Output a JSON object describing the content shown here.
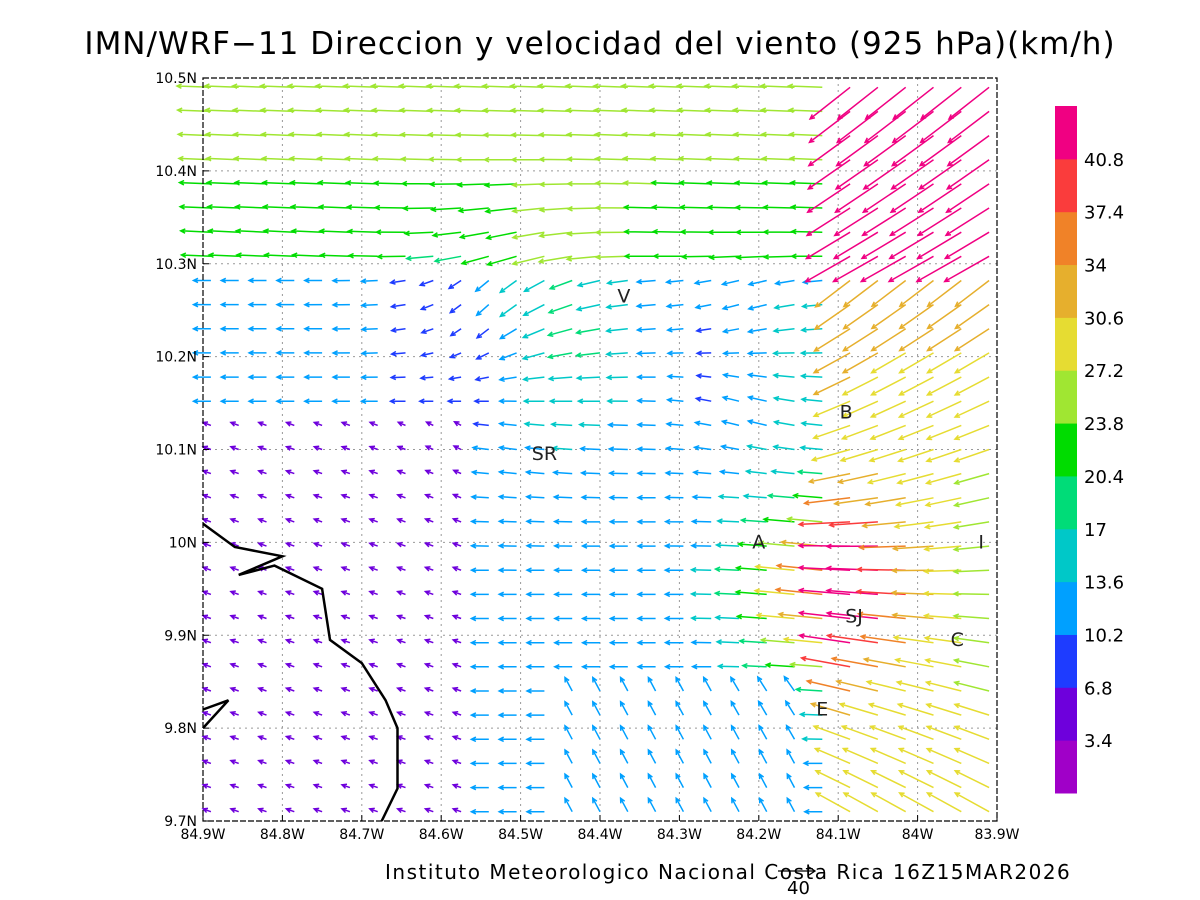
{
  "title": "IMN/WRF−11 Direccion y velocidad del viento (925 hPa)(km/h)",
  "footer": "Instituto Meteorologico Nacional Costa Rica 16Z15MAR2026",
  "reference_vector_label": "40",
  "chart_data": {
    "type": "vector-field",
    "x_ticks": [
      "84.9W",
      "84.8W",
      "84.7W",
      "84.6W",
      "84.5W",
      "84.4W",
      "84.3W",
      "84.2W",
      "84.1W",
      "84W",
      "83.9W"
    ],
    "y_ticks": [
      "9.7N",
      "9.8N",
      "9.9N",
      "10N",
      "10.1N",
      "10.2N",
      "10.3N",
      "10.4N",
      "10.5N"
    ],
    "xlim": [
      -84.9,
      -83.9
    ],
    "ylim": [
      9.7,
      10.5
    ],
    "grid": true,
    "colorbar": {
      "labels": [
        "3.4",
        "6.8",
        "10.2",
        "13.6",
        "17",
        "20.4",
        "23.8",
        "27.2",
        "30.6",
        "34",
        "37.4",
        "40.8"
      ],
      "colors": [
        "#a000c8",
        "#6e00dc",
        "#1e3cff",
        "#00a0ff",
        "#00c8c8",
        "#00dc78",
        "#00dc00",
        "#a0e632",
        "#e6dc32",
        "#e6af2d",
        "#f08228",
        "#fa3c3c",
        "#f00082"
      ]
    },
    "places": [
      {
        "label": "V",
        "lon": -84.37,
        "lat": 10.265
      },
      {
        "label": "SR",
        "lon": -84.47,
        "lat": 10.095
      },
      {
        "label": "B",
        "lon": -84.09,
        "lat": 10.14
      },
      {
        "label": "A",
        "lon": -84.2,
        "lat": 10.0
      },
      {
        "label": "I",
        "lon": -83.92,
        "lat": 10.0
      },
      {
        "label": "SJ",
        "lon": -84.08,
        "lat": 9.92
      },
      {
        "label": "C",
        "lon": -83.95,
        "lat": 9.895
      },
      {
        "label": "E",
        "lon": -84.12,
        "lat": 9.82
      }
    ],
    "coastline": [
      {
        "lon": -84.9,
        "lat": 10.02
      },
      {
        "lon": -84.86,
        "lat": 9.995
      },
      {
        "lon": -84.8,
        "lat": 9.985
      },
      {
        "lon": -84.855,
        "lat": 9.965
      },
      {
        "lon": -84.81,
        "lat": 9.975
      },
      {
        "lon": -84.75,
        "lat": 9.95
      },
      {
        "lon": -84.74,
        "lat": 9.895
      },
      {
        "lon": -84.7,
        "lat": 9.87
      },
      {
        "lon": -84.67,
        "lat": 9.83
      },
      {
        "lon": -84.655,
        "lat": 9.8
      },
      {
        "lon": -84.655,
        "lat": 9.735
      },
      {
        "lon": -84.675,
        "lat": 9.7
      }
    ],
    "coastline_spur": [
      {
        "lon": -84.9,
        "lat": 9.82
      },
      {
        "lon": -84.868,
        "lat": 9.83
      },
      {
        "lon": -84.9,
        "lat": 9.8
      }
    ]
  }
}
